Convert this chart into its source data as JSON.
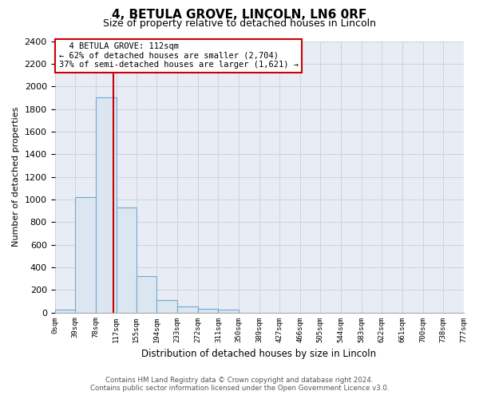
{
  "title": "4, BETULA GROVE, LINCOLN, LN6 0RF",
  "subtitle": "Size of property relative to detached houses in Lincoln",
  "xlabel": "Distribution of detached houses by size in Lincoln",
  "ylabel": "Number of detached properties",
  "bar_values": [
    25,
    1020,
    1900,
    930,
    320,
    110,
    55,
    30,
    25,
    0,
    0,
    0,
    0,
    0,
    0,
    0,
    0,
    0,
    0,
    0
  ],
  "bin_labels": [
    "0sqm",
    "39sqm",
    "78sqm",
    "117sqm",
    "155sqm",
    "194sqm",
    "233sqm",
    "272sqm",
    "311sqm",
    "350sqm",
    "389sqm",
    "427sqm",
    "466sqm",
    "505sqm",
    "544sqm",
    "583sqm",
    "622sqm",
    "661sqm",
    "700sqm",
    "738sqm",
    "777sqm"
  ],
  "bar_color": "#dce6f1",
  "bar_edge_color": "#6fa8d5",
  "vline_color": "#cc0000",
  "annotation_title": "4 BETULA GROVE: 112sqm",
  "annotation_line1": "← 62% of detached houses are smaller (2,704)",
  "annotation_line2": "37% of semi-detached houses are larger (1,621) →",
  "annotation_box_color": "#ffffff",
  "annotation_box_edge": "#cc0000",
  "ylim": [
    0,
    2400
  ],
  "yticks": [
    0,
    200,
    400,
    600,
    800,
    1000,
    1200,
    1400,
    1600,
    1800,
    2000,
    2200,
    2400
  ],
  "footer_line1": "Contains HM Land Registry data © Crown copyright and database right 2024.",
  "footer_line2": "Contains public sector information licensed under the Open Government Licence v3.0.",
  "bg_color": "#ffffff",
  "plot_bg_color": "#e8edf5",
  "grid_color": "#c8cdd8"
}
